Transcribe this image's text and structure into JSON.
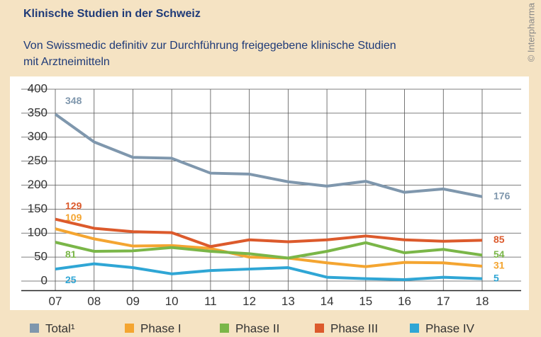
{
  "chart_data": {
    "type": "line",
    "title": "Klinische Studien in der Schweiz",
    "subtitle": [
      "Von Swissmedic definitiv zur Durchführung freigegebene klinische Studien",
      "mit Arztneimitteln"
    ],
    "source": "© Interpharma",
    "categories": [
      "07",
      "08",
      "09",
      "10",
      "11",
      "12",
      "13",
      "14",
      "15",
      "16",
      "17",
      "18"
    ],
    "series": [
      {
        "name": "Total¹",
        "color": "#7f97ad",
        "values": [
          348,
          290,
          258,
          256,
          225,
          223,
          207,
          198,
          208,
          185,
          192,
          176
        ]
      },
      {
        "name": "Phase I",
        "color": "#f4a531",
        "values": [
          109,
          88,
          73,
          74,
          68,
          50,
          48,
          38,
          30,
          39,
          38,
          31
        ]
      },
      {
        "name": "Phase II",
        "color": "#7ab648",
        "values": [
          81,
          62,
          63,
          70,
          62,
          57,
          48,
          62,
          80,
          59,
          66,
          54
        ]
      },
      {
        "name": "Phase III",
        "color": "#dc5a2c",
        "values": [
          129,
          110,
          103,
          101,
          72,
          86,
          82,
          86,
          94,
          86,
          83,
          85
        ]
      },
      {
        "name": "Phase IV",
        "color": "#2fa6d5",
        "values": [
          25,
          36,
          28,
          15,
          22,
          25,
          28,
          8,
          5,
          3,
          8,
          5
        ]
      }
    ],
    "ylim": [
      -20,
      400
    ],
    "yticks": [
      0,
      50,
      100,
      150,
      200,
      250,
      300,
      350,
      400
    ],
    "grid": true
  }
}
